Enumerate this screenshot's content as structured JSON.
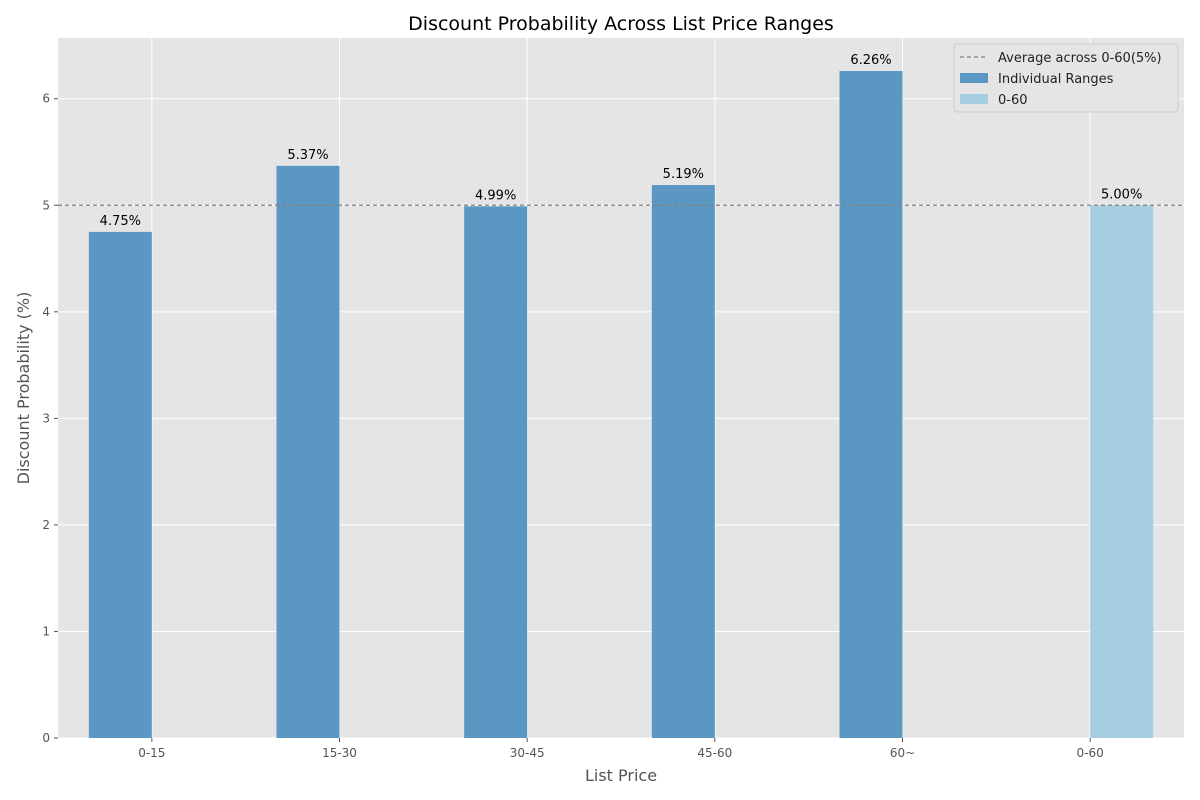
{
  "chart_data": {
    "type": "bar",
    "title": "Discount Probability Across List Price Ranges",
    "xlabel": "List Price",
    "ylabel": "Discount Probability (%)",
    "categories": [
      "0-15",
      "15-30",
      "30-45",
      "45-60",
      "60~",
      "0-60"
    ],
    "ylim": [
      0,
      6.57
    ],
    "yticks": [
      0,
      1,
      2,
      3,
      4,
      5,
      6
    ],
    "grid": true,
    "legend_position": "top-right",
    "series": [
      {
        "name": "Individual Ranges",
        "color": "#5a97c3",
        "values": [
          4.75,
          5.37,
          4.99,
          5.19,
          6.26,
          null
        ],
        "labels": [
          "4.75%",
          "5.37%",
          "4.99%",
          "5.19%",
          "6.26%",
          ""
        ]
      },
      {
        "name": "0-60",
        "color": "#a6cee3",
        "values": [
          null,
          null,
          null,
          null,
          null,
          5.0
        ],
        "labels": [
          "",
          "",
          "",
          "",
          "",
          "5.00%"
        ]
      }
    ],
    "reference_line": {
      "name": "Average across 0-60(5%)",
      "value": 5,
      "color": "#808080",
      "style": "dashed"
    }
  }
}
